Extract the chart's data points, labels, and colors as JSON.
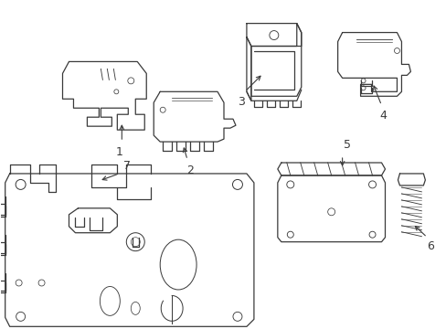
{
  "bg_color": "#ffffff",
  "lc": "#3a3a3a",
  "lw": 0.9,
  "fs": 9,
  "figsize": [
    4.89,
    3.6
  ],
  "dpi": 100
}
